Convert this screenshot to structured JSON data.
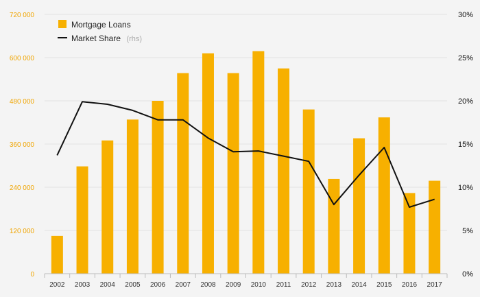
{
  "chart_data": {
    "type": "bar",
    "categories": [
      "2002",
      "2003",
      "2004",
      "2005",
      "2006",
      "2007",
      "2008",
      "2009",
      "2010",
      "2011",
      "2012",
      "2013",
      "2014",
      "2015",
      "2016",
      "2017"
    ],
    "series": [
      {
        "name": "Mortgage Loans",
        "type": "bar",
        "axis": "left",
        "color": "#f7b000",
        "values": [
          105000,
          298000,
          370000,
          428000,
          480000,
          557000,
          612000,
          557000,
          618000,
          570000,
          456000,
          263000,
          376000,
          434000,
          224000,
          258000
        ]
      },
      {
        "name": "Market Share",
        "legend_suffix": "(rhs)",
        "type": "line",
        "axis": "right",
        "color": "#111111",
        "values": [
          13.7,
          19.9,
          19.6,
          18.9,
          17.8,
          17.8,
          15.7,
          14.1,
          14.2,
          13.6,
          13.0,
          8.0,
          11.4,
          14.6,
          7.7,
          8.6
        ]
      }
    ],
    "y_left": {
      "range": [
        0,
        720000
      ],
      "ticks": [
        0,
        120000,
        240000,
        360000,
        480000,
        600000,
        720000
      ],
      "tick_labels": [
        "0",
        "120 000",
        "240 000",
        "360 000",
        "480 000",
        "600 000",
        "720 000"
      ],
      "tick_color": "#f0a500"
    },
    "y_right": {
      "range": [
        0,
        30
      ],
      "ticks": [
        0,
        5,
        10,
        15,
        20,
        25,
        30
      ],
      "tick_labels": [
        "0%",
        "5%",
        "10%",
        "15%",
        "20%",
        "25%",
        "30%"
      ]
    },
    "grid": true,
    "legend_position": "top-left"
  }
}
